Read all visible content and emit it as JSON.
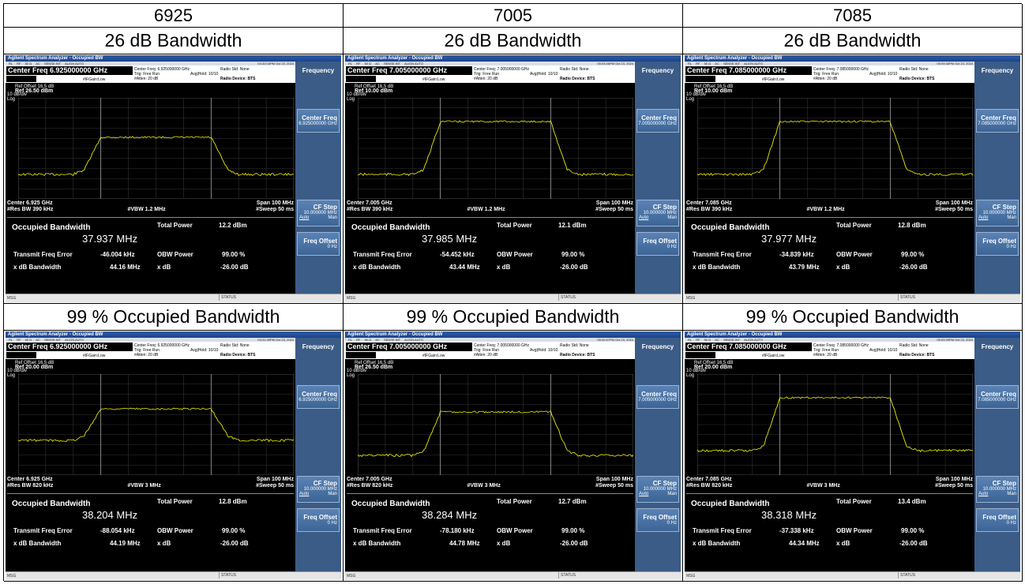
{
  "headers": [
    "6925",
    "7005",
    "7085"
  ],
  "row_labels": [
    "26 dB Bandwidth",
    "99 % Occupied Bandwidth"
  ],
  "analyzer": {
    "window_title": "Agilent Spectrum Analyzer - Occupied BW",
    "status_items": [
      "RL",
      "RF",
      "50 Ω",
      "AC",
      "SENSE:INT",
      "ALIGN AUTO"
    ],
    "trig": "Trig: Free Run",
    "avg": "Avg|Hold: 10/10",
    "atten": "#Atten: 20 dB",
    "ifgain": "#IFGain:Low",
    "radio_std": "Radio Std: None",
    "radio_device": "Radio Device: BTS",
    "ref_offset": "Ref Offset 16.5 dB",
    "div": "10 dB/div",
    "log": "Log",
    "softkey_title": "Frequency",
    "softkey_cf": "Center Freq",
    "softkey_cfstep": "CF Step",
    "cfstep_value": "10.000000 MHz",
    "auto": "Auto",
    "man": "Man",
    "softkey_offset": "Freq Offset",
    "offset_value": "0 Hz",
    "span": "Span 100 MHz",
    "obw_label": "Occupied Bandwidth",
    "total_power_label": "Total Power",
    "tx_err_label": "Transmit Freq Error",
    "obw_power_label": "OBW Power",
    "obw_power_value": "99.00 %",
    "xdb_bw_label": "x dB Bandwidth",
    "xdb_label": "x dB",
    "xdb_value": "-26.00 dB",
    "msg": "MSG",
    "status": "STATUS",
    "trace_color": "#e8e800",
    "softkey_color": "#3c6596"
  },
  "panels": [
    {
      "cf_box": "Center Freq  6.925000000 GHz",
      "cf_info": "Center Freq: 6.925000000 GHz",
      "time": "04:32:04PM Oct 23, 2024",
      "ref_level": "Ref 26.50 dBm",
      "cf_softkey_value": "6.925000000 GHz",
      "center": "Center  6.925 GHz",
      "rbw": "#Res BW  390 kHz",
      "vbw": "#VBW  1.2 MHz",
      "sweep": "#Sweep  50 ms",
      "obw": "37.937 MHz",
      "total_power": "12.2 dBm",
      "tx_err": "-46.004 kHz",
      "xdb_bw": "44.16 MHz",
      "plateau": -2,
      "floor": -43,
      "edge": 0.5
    },
    {
      "cf_box": "Center Freq  7.005000000 GHz",
      "cf_info": "Center Freq: 7.005000000 GHz",
      "time": "05:03:46PM Oct 23, 2024",
      "ref_level": "Ref 10.00 dBm",
      "cf_softkey_value": "7.005000000 GHz",
      "center": "Center  7.005 GHz",
      "rbw": "#Res BW  390 kHz",
      "vbw": "#VBW  1.2 MHz",
      "sweep": "#Sweep  50 ms",
      "obw": "37.985 MHz",
      "total_power": "12.1 dBm",
      "tx_err": "-54.452 kHz",
      "xdb_bw": "43.44 MHz",
      "plateau": 0.7,
      "floor": -45,
      "edge": 0.5
    },
    {
      "cf_box": "Center Freq  7.085000000 GHz",
      "cf_info": "Center Freq: 7.085000000 GHz",
      "time": "05:09:46PM Oct 23, 2024",
      "ref_level": "Ref 10.00 dBm",
      "cf_softkey_value": "7.085000000 GHz",
      "center": "Center  7.085 GHz",
      "rbw": "#Res BW  390 kHz",
      "vbw": "#VBW  1.2 MHz",
      "sweep": "#Sweep  50 ms",
      "obw": "37.977 MHz",
      "total_power": "12.8 dBm",
      "tx_err": "-34.839 kHz",
      "xdb_bw": "43.79 MHz",
      "plateau": 0.6,
      "floor": -44,
      "edge": 0.5
    },
    {
      "cf_box": "Center Freq  6.925000000 GHz",
      "cf_info": "Center Freq: 6.925000000 GHz",
      "time": "04:31:39PM Oct 23, 2024",
      "ref_level": "Ref 20.00 dBm",
      "cf_softkey_value": "6.925000000 GHz",
      "center": "Center  6.925 GHz",
      "rbw": "#Res BW  820 kHz",
      "vbw": "#VBW  3 MHz",
      "sweep": "#Sweep  50 ms",
      "obw": "38.204 MHz",
      "total_power": "12.8 dBm",
      "tx_err": "-88.054 kHz",
      "xdb_bw": "44.19 MHz",
      "plateau": 0.5,
      "floor": -42,
      "edge": 0.5
    },
    {
      "cf_box": "Center Freq  7.005000000 GHz",
      "cf_info": "Center Freq: 7.005000000 GHz",
      "time": "05:00:57PM Oct 23, 2024",
      "ref_level": "Ref 26.50 dBm",
      "cf_softkey_value": "7.005000000 GHz",
      "center": "Center  7.005 GHz",
      "rbw": "#Res BW  820 kHz",
      "vbw": "#VBW  3 MHz",
      "sweep": "#Sweep  50 ms",
      "obw": "38.284 MHz",
      "total_power": "12.7 dBm",
      "tx_err": "-78.180 kHz",
      "xdb_bw": "44.78 MHz",
      "plateau": 0.2,
      "floor": -32,
      "edge": 0.5
    },
    {
      "cf_box": "Center Freq  7.085000000 GHz",
      "cf_info": "Center Freq: 7.085000000 GHz",
      "time": "05:09:39PM Oct 23, 2024",
      "ref_level": "Ref 20.00 dBm",
      "cf_softkey_value": "7.085000000 GHz",
      "center": "Center  7.085 GHz",
      "rbw": "#Res BW  820 kHz",
      "vbw": "#VBW  3 MHz",
      "sweep": "#Sweep  50 ms",
      "obw": "38.318 MHz",
      "total_power": "13.4 dBm",
      "tx_err": "-37.338 kHz",
      "xdb_bw": "44.34 MHz",
      "plateau": 0.7,
      "floor": -45,
      "edge": 0.5
    }
  ]
}
